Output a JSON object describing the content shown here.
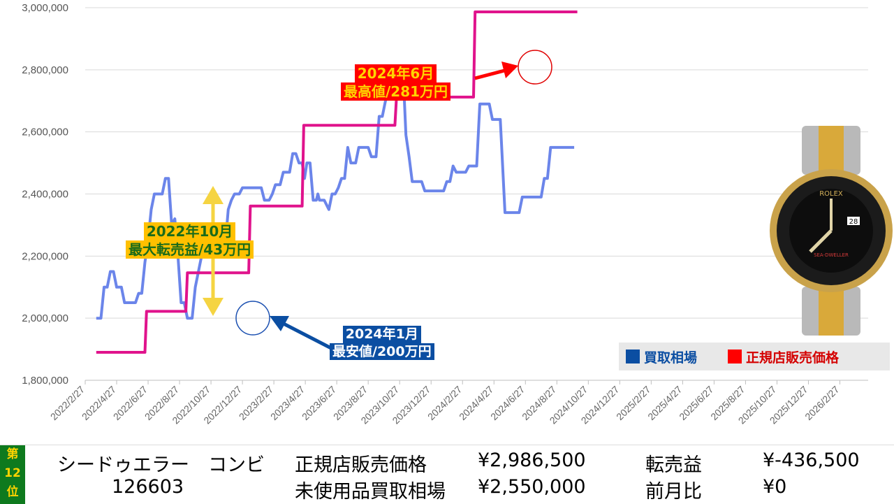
{
  "chart_data": {
    "type": "line",
    "ylim": [
      1800000,
      3000000
    ],
    "y_ticks": [
      "1,800,000",
      "2,000,000",
      "2,200,000",
      "2,400,000",
      "2,600,000",
      "2,800,000",
      "3,000,000"
    ],
    "x_ticks": [
      "2022/2/27",
      "2022/4/27",
      "2022/6/27",
      "2022/8/27",
      "2022/10/27",
      "2022/12/27",
      "2023/2/27",
      "2023/4/27",
      "2023/6/27",
      "2023/8/27",
      "2023/10/27",
      "2023/12/27",
      "2024/2/27",
      "2024/4/27",
      "2024/6/27",
      "2024/8/27",
      "2024/10/27",
      "2024/12/27",
      "2025/2/27",
      "2025/4/27",
      "2025/6/27",
      "2025/8/27",
      "2025/10/27",
      "2025/12/27",
      "2026/2/27"
    ],
    "series": [
      {
        "name": "買取相場",
        "color": "#6b85ea",
        "points": [
          [
            0.7,
            2000000
          ],
          [
            1.0,
            2000000
          ],
          [
            1.2,
            2100000
          ],
          [
            1.4,
            2100000
          ],
          [
            1.6,
            2150000
          ],
          [
            1.8,
            2150000
          ],
          [
            2.0,
            2100000
          ],
          [
            2.3,
            2100000
          ],
          [
            2.5,
            2050000
          ],
          [
            2.8,
            2050000
          ],
          [
            3.0,
            2050000
          ],
          [
            3.2,
            2050000
          ],
          [
            3.4,
            2080000
          ],
          [
            3.6,
            2080000
          ],
          [
            3.8,
            2180000
          ],
          [
            4.0,
            2250000
          ],
          [
            4.2,
            2350000
          ],
          [
            4.4,
            2400000
          ],
          [
            4.7,
            2400000
          ],
          [
            4.9,
            2400000
          ],
          [
            5.1,
            2450000
          ],
          [
            5.3,
            2450000
          ],
          [
            5.5,
            2300000
          ],
          [
            5.7,
            2320000
          ],
          [
            5.9,
            2200000
          ],
          [
            6.1,
            2050000
          ],
          [
            6.3,
            2050000
          ],
          [
            6.5,
            2000000
          ],
          [
            6.8,
            2000000
          ],
          [
            7.0,
            2100000
          ],
          [
            7.2,
            2150000
          ],
          [
            7.4,
            2200000
          ],
          [
            7.6,
            2250000
          ],
          [
            7.8,
            2300000
          ],
          [
            8.0,
            2300000
          ],
          [
            8.2,
            2250000
          ],
          [
            8.4,
            2250000
          ],
          [
            8.7,
            2250000
          ],
          [
            8.9,
            2230000
          ],
          [
            9.1,
            2350000
          ],
          [
            9.3,
            2380000
          ],
          [
            9.5,
            2400000
          ],
          [
            9.8,
            2400000
          ],
          [
            10.0,
            2420000
          ],
          [
            10.3,
            2420000
          ],
          [
            10.6,
            2420000
          ],
          [
            10.9,
            2420000
          ],
          [
            11.2,
            2420000
          ],
          [
            11.4,
            2380000
          ],
          [
            11.7,
            2380000
          ],
          [
            11.9,
            2400000
          ],
          [
            12.1,
            2430000
          ],
          [
            12.4,
            2430000
          ],
          [
            12.6,
            2470000
          ],
          [
            12.8,
            2470000
          ],
          [
            13.0,
            2470000
          ],
          [
            13.2,
            2530000
          ],
          [
            13.4,
            2530000
          ],
          [
            13.6,
            2500000
          ],
          [
            13.8,
            2500000
          ],
          [
            13.95,
            2450000
          ],
          [
            14.1,
            2500000
          ],
          [
            14.3,
            2500000
          ],
          [
            14.5,
            2380000
          ],
          [
            14.7,
            2380000
          ],
          [
            14.8,
            2400000
          ],
          [
            14.9,
            2380000
          ],
          [
            15.2,
            2380000
          ],
          [
            15.4,
            2360000
          ],
          [
            15.5,
            2350000
          ],
          [
            15.7,
            2400000
          ],
          [
            15.9,
            2400000
          ],
          [
            16.1,
            2420000
          ],
          [
            16.3,
            2450000
          ],
          [
            16.5,
            2450000
          ],
          [
            16.7,
            2550000
          ],
          [
            16.9,
            2500000
          ],
          [
            17.2,
            2500000
          ],
          [
            17.4,
            2550000
          ],
          [
            17.7,
            2550000
          ],
          [
            18.0,
            2550000
          ],
          [
            18.2,
            2520000
          ],
          [
            18.5,
            2520000
          ],
          [
            18.7,
            2650000
          ],
          [
            18.9,
            2650000
          ],
          [
            19.1,
            2700000
          ],
          [
            19.3,
            2720000
          ],
          [
            19.5,
            2710000
          ],
          [
            19.7,
            2810000
          ],
          [
            19.9,
            2760000
          ],
          [
            20.1,
            2760000
          ],
          [
            20.3,
            2700000
          ],
          [
            20.4,
            2590000
          ],
          [
            20.6,
            2520000
          ],
          [
            20.8,
            2440000
          ],
          [
            21.0,
            2440000
          ],
          [
            21.2,
            2440000
          ],
          [
            21.4,
            2440000
          ],
          [
            21.6,
            2410000
          ],
          [
            21.9,
            2410000
          ],
          [
            22.2,
            2410000
          ],
          [
            22.5,
            2410000
          ],
          [
            22.8,
            2410000
          ],
          [
            23.0,
            2440000
          ],
          [
            23.2,
            2440000
          ],
          [
            23.4,
            2490000
          ],
          [
            23.6,
            2470000
          ],
          [
            23.9,
            2470000
          ],
          [
            24.2,
            2470000
          ],
          [
            24.4,
            2490000
          ],
          [
            24.6,
            2490000
          ],
          [
            24.9,
            2490000
          ],
          [
            25.1,
            2690000
          ],
          [
            25.4,
            2690000
          ],
          [
            25.7,
            2690000
          ],
          [
            25.9,
            2640000
          ],
          [
            26.2,
            2640000
          ],
          [
            26.4,
            2640000
          ],
          [
            26.7,
            2340000
          ],
          [
            27.0,
            2340000
          ],
          [
            27.3,
            2340000
          ],
          [
            27.6,
            2340000
          ],
          [
            27.8,
            2390000
          ],
          [
            28.1,
            2390000
          ],
          [
            28.4,
            2390000
          ],
          [
            28.7,
            2390000
          ],
          [
            29.0,
            2390000
          ],
          [
            29.2,
            2450000
          ],
          [
            29.4,
            2450000
          ],
          [
            29.6,
            2550000
          ],
          [
            29.9,
            2550000
          ],
          [
            30.2,
            2550000
          ],
          [
            30.5,
            2550000
          ],
          [
            30.8,
            2550000
          ],
          [
            31.1,
            2550000
          ]
        ]
      },
      {
        "name": "正規店販売価格",
        "color": "#e0138c",
        "points": [
          [
            0.7,
            1890000
          ],
          [
            1.5,
            1890000
          ],
          [
            3.0,
            1890000
          ],
          [
            3.8,
            1890000
          ],
          [
            3.9,
            2022000
          ],
          [
            6.0,
            2022000
          ],
          [
            6.4,
            2022000
          ],
          [
            6.5,
            2146000
          ],
          [
            7.5,
            2146000
          ],
          [
            9.0,
            2146000
          ],
          [
            10.4,
            2146000
          ],
          [
            10.5,
            2361000
          ],
          [
            12.0,
            2361000
          ],
          [
            13.0,
            2361000
          ],
          [
            13.8,
            2361000
          ],
          [
            13.9,
            2621000
          ],
          [
            16.5,
            2621000
          ],
          [
            18.0,
            2621000
          ],
          [
            19.7,
            2621000
          ],
          [
            19.8,
            2712000
          ],
          [
            21.5,
            2712000
          ],
          [
            23.0,
            2712000
          ],
          [
            24.7,
            2712000
          ],
          [
            24.8,
            2986500
          ],
          [
            27.0,
            2986500
          ],
          [
            29.0,
            2986500
          ],
          [
            31.3,
            2986500
          ]
        ]
      }
    ],
    "annotations": [
      {
        "lines": [
          "2024年6月",
          "最高値/281万円"
        ]
      },
      {
        "lines": [
          "2022年10月",
          "最大転売益/43万円"
        ]
      },
      {
        "lines": [
          "2024年1月",
          "最安値/200万円"
        ]
      }
    ],
    "legend": [
      {
        "label": "買取相場",
        "color": "#0b4ea2"
      },
      {
        "label": "正規店販売価格",
        "color": "#ff0000"
      }
    ],
    "legend_position": "bottom-right"
  },
  "footer": {
    "rank_chars": [
      "第",
      "12",
      "位"
    ],
    "model_name": "シードゥエラー　コンビ",
    "ref_number": "126603",
    "retail_label": "正規店販売価格",
    "retail_value": "¥2,986,500",
    "buyback_label": "未使用品買取相場",
    "buyback_value": "¥2,550,000",
    "profit_label": "転売益",
    "profit_value": "¥-436,500",
    "mom_label": "前月比",
    "mom_value": "¥0"
  }
}
